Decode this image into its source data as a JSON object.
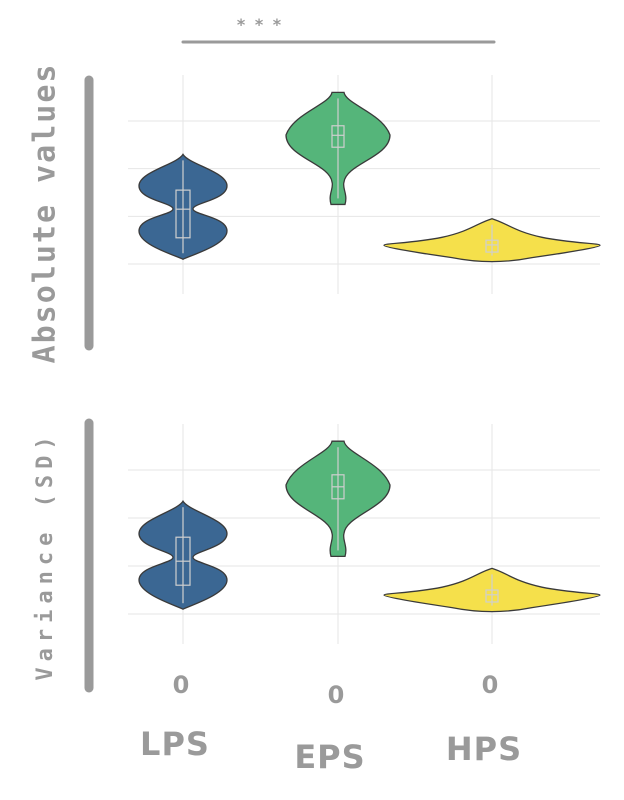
{
  "chart_data": {
    "type": "violin",
    "categories": [
      "LPS",
      "EPS",
      "HPS"
    ],
    "colors": [
      "#3b6793",
      "#55b57a",
      "#f5e04b"
    ],
    "significance": {
      "label": "* * *",
      "from": "LPS",
      "to": "HPS"
    },
    "panels": [
      {
        "ylabel": "Absolute values",
        "ylim": [
          0,
          5
        ],
        "gridlines": [
          1,
          2,
          3,
          4
        ],
        "violins": [
          {
            "category": "LPS",
            "min": 1.1,
            "max": 3.3,
            "q1": 1.55,
            "median": 2.15,
            "q3": 2.55,
            "width": 1.0
          },
          {
            "category": "EPS",
            "min": 2.25,
            "max": 4.6,
            "q1": 3.45,
            "median": 3.7,
            "q3": 3.9,
            "width": 1.0
          },
          {
            "category": "HPS",
            "min": 1.05,
            "max": 1.95,
            "q1": 1.25,
            "median": 1.4,
            "q3": 1.5,
            "width": 2.7
          }
        ]
      },
      {
        "ylabel": "Variance (SD)",
        "ylim": [
          0,
          5
        ],
        "gridlines": [
          1,
          2,
          3,
          4
        ],
        "violins": [
          {
            "category": "LPS",
            "min": 1.1,
            "max": 3.35,
            "q1": 1.6,
            "median": 2.1,
            "q3": 2.6,
            "width": 1.0
          },
          {
            "category": "EPS",
            "min": 2.2,
            "max": 4.6,
            "q1": 3.4,
            "median": 3.65,
            "q3": 3.9,
            "width": 1.0
          },
          {
            "category": "HPS",
            "min": 1.05,
            "max": 1.95,
            "q1": 1.25,
            "median": 1.4,
            "q3": 1.5,
            "width": 2.7
          }
        ]
      }
    ],
    "x_ticks": [
      "0",
      "0",
      "0"
    ]
  }
}
